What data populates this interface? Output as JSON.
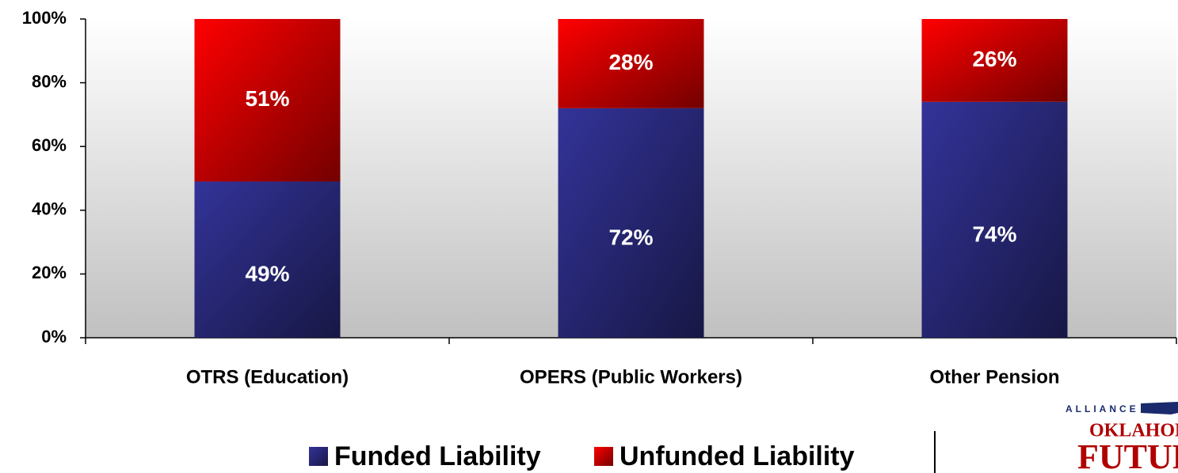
{
  "chart_data": {
    "type": "stacked_bar",
    "categories": [
      "OTRS (Education)",
      "OPERS (Public Workers)",
      "Other Pension"
    ],
    "series": [
      {
        "name": "Funded Liability",
        "color": "#333399",
        "values": [
          49,
          72,
          74
        ],
        "value_labels": [
          "49%",
          "72%",
          "74%"
        ]
      },
      {
        "name": "Unfunded Liability",
        "color": "#ff0000",
        "values": [
          51,
          28,
          26
        ],
        "value_labels": [
          "51%",
          "28%",
          "26%"
        ]
      }
    ],
    "ylim": [
      0,
      100
    ],
    "yticks": [
      {
        "value": 0,
        "label": "0%"
      },
      {
        "value": 20,
        "label": "20%"
      },
      {
        "value": 40,
        "label": "40%"
      },
      {
        "value": 60,
        "label": "60%"
      },
      {
        "value": 80,
        "label": "80%"
      },
      {
        "value": 100,
        "label": "100%"
      }
    ],
    "legend": "bottom",
    "annotations": [
      "ALLIANCE FOR",
      "OKLAHOMA'S",
      "FUTURE"
    ]
  }
}
